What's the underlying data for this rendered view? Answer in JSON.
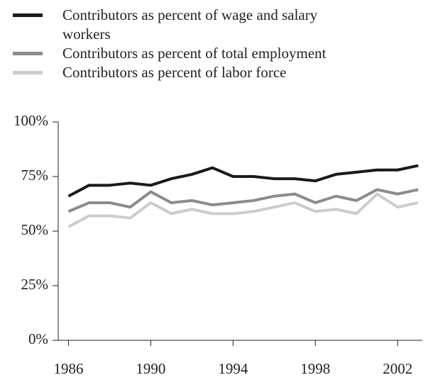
{
  "chart_data": {
    "type": "line",
    "x": [
      1986,
      1987,
      1988,
      1989,
      1990,
      1991,
      1992,
      1993,
      1994,
      1995,
      1996,
      1997,
      1998,
      1999,
      2000,
      2001,
      2002,
      2003
    ],
    "series": [
      {
        "name": "Contributors as percent of wage and salary workers",
        "color": "#1a1a1a",
        "values": [
          66,
          71,
          71,
          72,
          71,
          74,
          76,
          79,
          75,
          75,
          74,
          74,
          73,
          76,
          77,
          78,
          78,
          80
        ]
      },
      {
        "name": "Contributors as percent of total employment",
        "color": "#8c8c8c",
        "values": [
          59,
          63,
          63,
          61,
          68,
          63,
          64,
          62,
          63,
          64,
          66,
          67,
          63,
          66,
          64,
          69,
          67,
          69
        ]
      },
      {
        "name": "Contributors as percent of labor force",
        "color": "#cccccc",
        "values": [
          52,
          57,
          57,
          56,
          63,
          58,
          60,
          58,
          58,
          59,
          61,
          63,
          59,
          60,
          58,
          67,
          61,
          63
        ]
      }
    ],
    "xlim": [
      1985.5,
      2003.2
    ],
    "xticks": [
      1986,
      1990,
      1994,
      1998,
      2002
    ],
    "ylim": [
      0,
      100
    ],
    "yticks": [
      {
        "value": 0,
        "label": "0%"
      },
      {
        "value": 25,
        "label": "25%"
      },
      {
        "value": 50,
        "label": "50%"
      },
      {
        "value": 75,
        "label": "75%"
      },
      {
        "value": 100,
        "label": "100%"
      }
    ],
    "legend": "top-left"
  }
}
